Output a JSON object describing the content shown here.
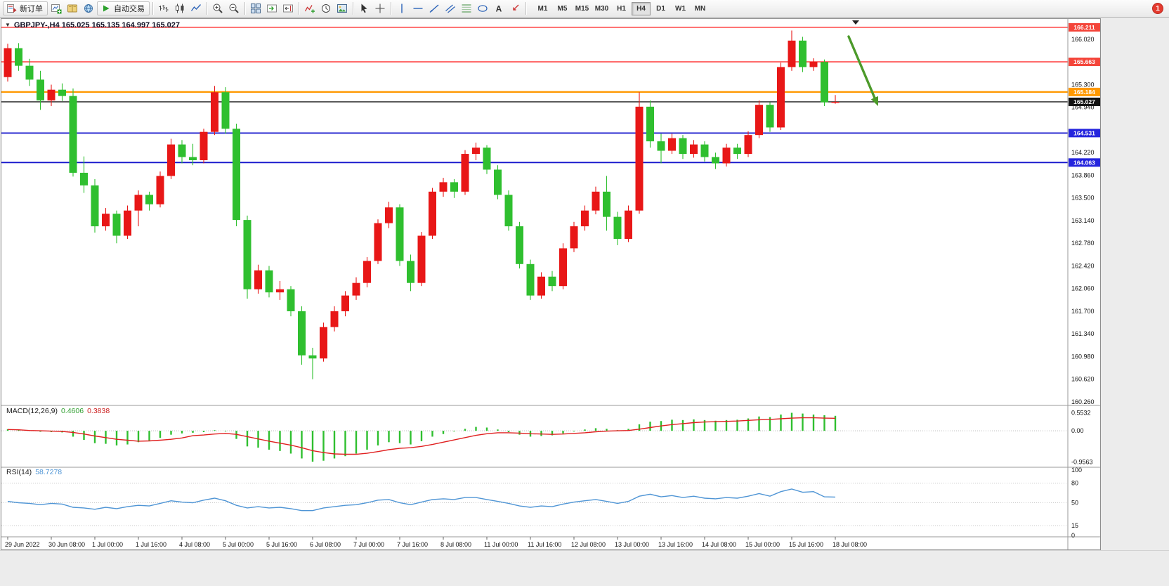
{
  "toolbar": {
    "new_order_label": "新订单",
    "autotrade_label": "自动交易",
    "notification_count": "1",
    "buttons": [
      {
        "name": "new-order-button",
        "icon": "order",
        "label": "新订单"
      },
      {
        "name": "new-chart-button",
        "icon": "chart-add"
      },
      {
        "name": "profiles-button",
        "icon": "book"
      },
      {
        "name": "data-window-button",
        "icon": "globe"
      },
      {
        "name": "autotrade-button",
        "icon": "play",
        "label": "自动交易"
      },
      {
        "sep": true
      },
      {
        "name": "bar-chart-button",
        "icon": "bars"
      },
      {
        "name": "candlestick-chart-button",
        "icon": "candles"
      },
      {
        "name": "line-chart-button",
        "icon": "line"
      },
      {
        "sep": true
      },
      {
        "name": "zoom-in-button",
        "icon": "zoom-in"
      },
      {
        "name": "zoom-out-button",
        "icon": "zoom-out"
      },
      {
        "sep": true
      },
      {
        "name": "tile-windows-button",
        "icon": "tile"
      },
      {
        "name": "auto-scroll-button",
        "icon": "scroll"
      },
      {
        "name": "chart-shift-button",
        "icon": "shift"
      },
      {
        "sep": true
      },
      {
        "name": "indicators-button",
        "icon": "indicator-add"
      },
      {
        "name": "periods-button",
        "icon": "clock"
      },
      {
        "name": "templates-button",
        "icon": "template"
      },
      {
        "sep": true
      },
      {
        "name": "cursor-button",
        "icon": "cursor"
      },
      {
        "name": "crosshair-button",
        "icon": "crosshair"
      },
      {
        "sep": true
      },
      {
        "name": "vertical-line-button",
        "icon": "vline"
      },
      {
        "name": "horizontal-line-button",
        "icon": "hline"
      },
      {
        "name": "trendline-button",
        "icon": "trend"
      },
      {
        "name": "equidistant-channel-button",
        "icon": "channel"
      },
      {
        "name": "fibonacci-button",
        "icon": "fibo"
      },
      {
        "name": "shapes-button",
        "icon": "shapes"
      },
      {
        "name": "text-label-button",
        "icon": "text"
      },
      {
        "name": "arrows-button",
        "icon": "arrows"
      },
      {
        "sep": true
      }
    ],
    "timeframes": [
      "M1",
      "M5",
      "M15",
      "M30",
      "H1",
      "H4",
      "D1",
      "W1",
      "MN"
    ],
    "active_timeframe": "H4"
  },
  "chart": {
    "collapse_glyph": "▼",
    "symbol": "GBPJPY-",
    "period": "H4",
    "title": "GBPJPY-,H4 165.025 165.135 164.997 165.027",
    "ohlc_display": {
      "open": "165.025",
      "high": "165.135",
      "low": "164.997",
      "close": "165.027"
    },
    "price_axis": {
      "max": 166.02,
      "min": 160.26,
      "step": 0.36,
      "labels": [
        "166.020",
        "165.660",
        "165.300",
        "164.940",
        "164.580",
        "164.220",
        "163.860",
        "163.500",
        "163.140",
        "162.780",
        "162.420",
        "162.060",
        "161.700",
        "161.340",
        "160.980",
        "160.620",
        "160.260"
      ]
    },
    "hlines": [
      {
        "label": "166.211",
        "price": 166.211,
        "color": "#ff1414",
        "tag": "#f4453a",
        "width": 1.2
      },
      {
        "label": "165.663",
        "price": 165.663,
        "color": "#ff1414",
        "tag": "#f4453a",
        "width": 1.2
      },
      {
        "label": "165.184",
        "price": 165.184,
        "color": "#ff9800",
        "tag": "#ff9800",
        "width": 2.2
      },
      {
        "label": "165.027",
        "price": 165.027,
        "color": "#1b1b1b",
        "tag": "#111111",
        "width": 1.4
      },
      {
        "label": "164.531",
        "price": 164.531,
        "color": "#1414cc",
        "tag": "#2424dd",
        "width": 1.8
      },
      {
        "label": "164.063",
        "price": 164.063,
        "color": "#1414cc",
        "tag": "#2424dd",
        "width": 1.8
      }
    ],
    "time_labels": [
      "29 Jun 2022",
      "30 Jun 08:00",
      "1 Jul 00:00",
      "1 Jul 16:00",
      "4 Jul 08:00",
      "5 Jul 00:00",
      "5 Jul 16:00",
      "6 Jul 08:00",
      "7 Jul 00:00",
      "7 Jul 16:00",
      "8 Jul 08:00",
      "11 Jul 00:00",
      "11 Jul 16:00",
      "12 Jul 08:00",
      "13 Jul 00:00",
      "13 Jul 16:00",
      "14 Jul 08:00",
      "15 Jul 00:00",
      "15 Jul 16:00",
      "18 Jul 08:00"
    ],
    "annotations": [
      {
        "type": "arrow-down-right",
        "color": "#4c9a2a"
      }
    ]
  },
  "chart_data": {
    "type": "candlestick",
    "symbol": "GBPJPY-",
    "timeframe": "H4",
    "title": "GBPJPY-,H4 165.025 165.135 164.997 165.027",
    "bull_color": "#e81717",
    "bear_color": "#2fbf2f",
    "x_label_every": 4,
    "x_labels": [
      "29 Jun 2022",
      "30 Jun 08:00",
      "1 Jul 00:00",
      "1 Jul 16:00",
      "4 Jul 08:00",
      "5 Jul 00:00",
      "5 Jul 16:00",
      "6 Jul 08:00",
      "7 Jul 00:00",
      "7 Jul 16:00",
      "8 Jul 08:00",
      "11 Jul 00:00",
      "11 Jul 16:00",
      "12 Jul 08:00",
      "13 Jul 00:00",
      "13 Jul 16:00",
      "14 Jul 08:00",
      "15 Jul 00:00",
      "15 Jul 16:00",
      "18 Jul 08:00"
    ],
    "ylim": [
      160.26,
      166.02
    ],
    "candles": [
      [
        165.42,
        165.95,
        165.35,
        165.88
      ],
      [
        165.88,
        165.96,
        165.52,
        165.6
      ],
      [
        165.6,
        165.71,
        165.28,
        165.38
      ],
      [
        165.38,
        165.52,
        164.9,
        165.05
      ],
      [
        165.05,
        165.3,
        164.96,
        165.22
      ],
      [
        165.22,
        165.32,
        165.04,
        165.12
      ],
      [
        165.12,
        165.24,
        163.84,
        163.9
      ],
      [
        163.9,
        164.16,
        163.58,
        163.7
      ],
      [
        163.7,
        163.8,
        162.95,
        163.05
      ],
      [
        163.05,
        163.34,
        162.98,
        163.25
      ],
      [
        163.25,
        163.3,
        162.78,
        162.9
      ],
      [
        162.9,
        163.38,
        162.85,
        163.3
      ],
      [
        163.3,
        163.62,
        163.05,
        163.55
      ],
      [
        163.55,
        163.6,
        163.3,
        163.4
      ],
      [
        163.4,
        163.92,
        163.35,
        163.85
      ],
      [
        163.85,
        164.44,
        163.8,
        164.35
      ],
      [
        164.35,
        164.42,
        164.05,
        164.15
      ],
      [
        164.15,
        164.36,
        164.02,
        164.1
      ],
      [
        164.1,
        164.6,
        164.05,
        164.55
      ],
      [
        164.55,
        165.28,
        164.5,
        165.18
      ],
      [
        165.18,
        165.26,
        164.52,
        164.6
      ],
      [
        164.6,
        164.68,
        163.05,
        163.15
      ],
      [
        163.15,
        163.22,
        161.9,
        162.05
      ],
      [
        162.05,
        162.44,
        161.98,
        162.35
      ],
      [
        162.35,
        162.42,
        161.92,
        162.0
      ],
      [
        162.0,
        162.18,
        161.88,
        162.05
      ],
      [
        162.05,
        162.1,
        161.62,
        161.7
      ],
      [
        161.7,
        161.78,
        160.85,
        161.0
      ],
      [
        161.0,
        161.12,
        160.62,
        160.95
      ],
      [
        160.95,
        161.52,
        160.9,
        161.45
      ],
      [
        161.45,
        161.78,
        161.38,
        161.7
      ],
      [
        161.7,
        162.02,
        161.62,
        161.95
      ],
      [
        161.95,
        162.24,
        161.88,
        162.15
      ],
      [
        162.15,
        162.56,
        162.08,
        162.5
      ],
      [
        162.5,
        163.16,
        162.45,
        163.1
      ],
      [
        163.1,
        163.44,
        163.02,
        163.35
      ],
      [
        163.35,
        163.4,
        162.42,
        162.5
      ],
      [
        162.5,
        162.6,
        162.02,
        162.15
      ],
      [
        162.15,
        162.96,
        162.1,
        162.9
      ],
      [
        162.9,
        163.66,
        162.85,
        163.6
      ],
      [
        163.6,
        163.82,
        163.52,
        163.75
      ],
      [
        163.75,
        163.8,
        163.5,
        163.6
      ],
      [
        163.6,
        164.26,
        163.55,
        164.2
      ],
      [
        164.2,
        164.38,
        164.1,
        164.3
      ],
      [
        164.3,
        164.34,
        163.88,
        163.95
      ],
      [
        163.95,
        164.02,
        163.48,
        163.55
      ],
      [
        163.55,
        163.62,
        162.98,
        163.05
      ],
      [
        163.05,
        163.12,
        162.38,
        162.45
      ],
      [
        162.45,
        162.52,
        161.88,
        161.95
      ],
      [
        161.95,
        162.32,
        161.9,
        162.25
      ],
      [
        162.25,
        162.34,
        162.02,
        162.1
      ],
      [
        162.1,
        162.78,
        162.05,
        162.7
      ],
      [
        162.7,
        163.12,
        162.64,
        163.05
      ],
      [
        163.05,
        163.38,
        162.98,
        163.3
      ],
      [
        163.3,
        163.68,
        163.24,
        163.6
      ],
      [
        163.6,
        163.85,
        162.98,
        163.2
      ],
      [
        163.2,
        163.28,
        162.75,
        162.85
      ],
      [
        162.85,
        163.38,
        162.8,
        163.3
      ],
      [
        163.3,
        165.18,
        163.25,
        164.95
      ],
      [
        164.95,
        165.05,
        164.3,
        164.4
      ],
      [
        164.4,
        164.52,
        164.05,
        164.25
      ],
      [
        164.25,
        164.52,
        164.2,
        164.45
      ],
      [
        164.45,
        164.5,
        164.12,
        164.2
      ],
      [
        164.2,
        164.42,
        164.14,
        164.35
      ],
      [
        164.35,
        164.4,
        164.08,
        164.15
      ],
      [
        164.15,
        164.22,
        163.96,
        164.05
      ],
      [
        164.05,
        164.36,
        164.0,
        164.3
      ],
      [
        164.3,
        164.36,
        164.12,
        164.2
      ],
      [
        164.2,
        164.56,
        164.15,
        164.5
      ],
      [
        164.5,
        165.05,
        164.45,
        164.98
      ],
      [
        164.98,
        165.02,
        164.55,
        164.62
      ],
      [
        164.62,
        165.65,
        164.58,
        165.58
      ],
      [
        165.58,
        166.16,
        165.52,
        166.0
      ],
      [
        166.0,
        166.06,
        165.5,
        165.58
      ],
      [
        165.58,
        165.72,
        165.52,
        165.66
      ],
      [
        165.66,
        165.7,
        164.96,
        165.02
      ],
      [
        165.025,
        165.135,
        164.997,
        165.027
      ]
    ],
    "indicators": {
      "macd": {
        "label": "MACD(12,26,9)",
        "main_value": "0.4606",
        "signal_value": "0.3838",
        "hist_color": "#2fbf2f",
        "signal_color": "#e02020",
        "axis": [
          {
            "v": 0.5532,
            "t": "0.5532"
          },
          {
            "v": 0,
            "t": "0.00"
          },
          {
            "v": -0.9563,
            "t": "-0.9563"
          }
        ],
        "histogram": [
          0.05,
          0.04,
          0.0,
          -0.03,
          -0.04,
          -0.05,
          -0.18,
          -0.28,
          -0.38,
          -0.4,
          -0.45,
          -0.42,
          -0.35,
          -0.3,
          -0.22,
          -0.12,
          -0.08,
          -0.06,
          -0.04,
          0.02,
          -0.02,
          -0.25,
          -0.48,
          -0.52,
          -0.58,
          -0.62,
          -0.7,
          -0.85,
          -0.95,
          -0.92,
          -0.85,
          -0.78,
          -0.7,
          -0.58,
          -0.45,
          -0.35,
          -0.38,
          -0.42,
          -0.32,
          -0.18,
          -0.1,
          -0.02,
          0.06,
          0.12,
          0.1,
          0.04,
          -0.04,
          -0.12,
          -0.18,
          -0.16,
          -0.14,
          -0.08,
          -0.02,
          0.04,
          0.08,
          0.06,
          0.02,
          0.06,
          0.2,
          0.28,
          0.3,
          0.34,
          0.33,
          0.35,
          0.33,
          0.31,
          0.33,
          0.34,
          0.38,
          0.44,
          0.42,
          0.5,
          0.5532,
          0.53,
          0.5,
          0.48,
          0.4606
        ],
        "signal": [
          0.04,
          0.03,
          0.01,
          0.0,
          -0.01,
          -0.02,
          -0.05,
          -0.1,
          -0.16,
          -0.21,
          -0.26,
          -0.29,
          -0.32,
          -0.31,
          -0.29,
          -0.26,
          -0.22,
          -0.15,
          -0.13,
          -0.1,
          -0.08,
          -0.11,
          -0.18,
          -0.25,
          -0.32,
          -0.38,
          -0.44,
          -0.52,
          -0.61,
          -0.67,
          -0.71,
          -0.72,
          -0.72,
          -0.69,
          -0.64,
          -0.58,
          -0.54,
          -0.52,
          -0.48,
          -0.42,
          -0.35,
          -0.28,
          -0.21,
          -0.14,
          -0.09,
          -0.06,
          -0.06,
          -0.07,
          -0.09,
          -0.1,
          -0.11,
          -0.1,
          -0.08,
          -0.06,
          -0.03,
          -0.01,
          0.0,
          0.01,
          0.05,
          0.1,
          0.15,
          0.19,
          0.22,
          0.25,
          0.27,
          0.28,
          0.29,
          0.3,
          0.32,
          0.34,
          0.35,
          0.37,
          0.39,
          0.4,
          0.4,
          0.39,
          0.3838
        ]
      },
      "rsi": {
        "label": "RSI(14)",
        "value": "58.7278",
        "line_color": "#4f95d5",
        "levels": [
          80,
          50,
          15
        ],
        "axis": [
          {
            "v": 100,
            "t": "100"
          },
          {
            "v": 80,
            "t": "80"
          },
          {
            "v": 50,
            "t": "50"
          },
          {
            "v": 15,
            "t": "15"
          },
          {
            "v": 0,
            "t": "0"
          }
        ],
        "series": [
          52,
          50,
          49,
          47,
          49,
          48,
          43,
          42,
          40,
          43,
          41,
          44,
          46,
          45,
          49,
          53,
          51,
          50,
          54,
          57,
          53,
          46,
          42,
          44,
          42,
          43,
          41,
          38,
          38,
          42,
          44,
          46,
          47,
          50,
          54,
          55,
          50,
          47,
          51,
          55,
          56,
          55,
          58,
          58,
          55,
          52,
          49,
          45,
          43,
          45,
          44,
          48,
          51,
          53,
          55,
          52,
          49,
          52,
          60,
          63,
          59,
          61,
          58,
          60,
          57,
          56,
          58,
          57,
          60,
          64,
          60,
          67,
          71,
          66,
          67,
          59,
          58.73
        ]
      }
    }
  }
}
